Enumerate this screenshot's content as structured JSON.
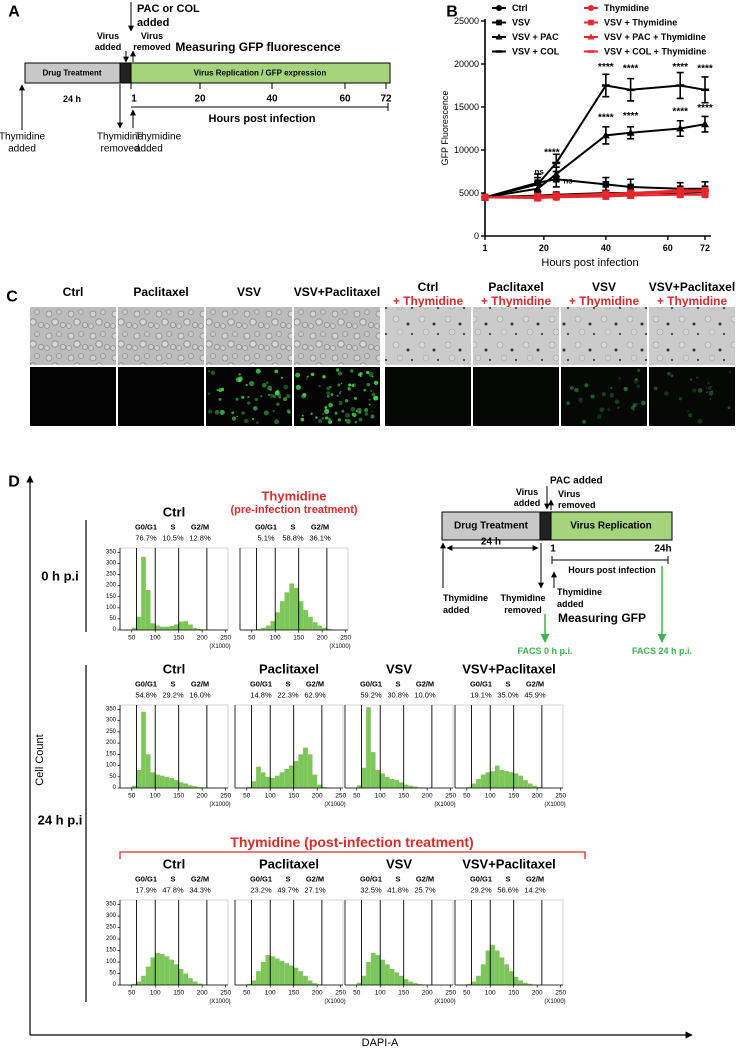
{
  "panel_labels": [
    "A",
    "B",
    "C",
    "D"
  ],
  "panel_a": {
    "pac_col_added": [
      "PAC or COL",
      "added"
    ],
    "virus_added": [
      "Virus",
      "added"
    ],
    "virus_removed": [
      "Virus",
      "removed"
    ],
    "measuring": "Measuring GFP fluorescence",
    "drug_treatment": "Drug Treatment",
    "virus_replication": "Virus Replication / GFP expression",
    "duration": "24 h",
    "hour_ticks": [
      "1",
      "20",
      "40",
      "60",
      "72"
    ],
    "axis_label": "Hours post infection",
    "thymidine_added": [
      "Thymidine",
      "added"
    ],
    "thymidine_removed": [
      "Thymidine",
      "removed"
    ],
    "thymidine_added_2": [
      "Thymidine",
      "added"
    ]
  },
  "chart_data": [
    {
      "type": "line",
      "x_label": "Hours post infection",
      "y_label": "GFP Fluorescence",
      "x": [
        1,
        18,
        24,
        40,
        48,
        64,
        72
      ],
      "xlim": [
        1,
        72
      ],
      "xticks": [
        1,
        20,
        40,
        60,
        72
      ],
      "ylim": [
        0,
        25000
      ],
      "yticks": [
        0,
        5000,
        10000,
        15000,
        20000,
        25000
      ],
      "series": [
        {
          "name": "Ctrl",
          "color": "#000000",
          "marker": "circle",
          "values": [
            4500,
            4700,
            4800,
            5000,
            5000,
            5000,
            5100
          ],
          "errors": [
            200,
            300,
            300,
            300,
            300,
            300,
            300
          ]
        },
        {
          "name": "VSV",
          "color": "#000000",
          "marker": "square",
          "values": [
            4500,
            6200,
            6600,
            6000,
            5700,
            5500,
            5500
          ],
          "errors": [
            300,
            1000,
            900,
            800,
            900,
            700,
            800
          ]
        },
        {
          "name": "VSV + PAC",
          "color": "#000000",
          "marker": "triangle",
          "values": [
            4500,
            5500,
            7200,
            11700,
            12000,
            12500,
            13000
          ],
          "errors": [
            300,
            800,
            800,
            1000,
            700,
            900,
            900
          ]
        },
        {
          "name": "VSV + COL",
          "color": "#000000",
          "marker": "dash",
          "values": [
            4500,
            6000,
            8500,
            17500,
            17000,
            17500,
            17000
          ],
          "errors": [
            300,
            800,
            1000,
            1300,
            1300,
            1500,
            1500
          ]
        },
        {
          "name": "Thymidine",
          "color": "#e8262b",
          "marker": "circle",
          "values": [
            4500,
            4400,
            4500,
            4600,
            4700,
            4800,
            4800
          ],
          "errors": [
            200,
            300,
            300,
            300,
            300,
            300,
            300
          ]
        },
        {
          "name": "VSV + Thymidine",
          "color": "#e8262b",
          "marker": "square",
          "values": [
            4500,
            4500,
            4600,
            4800,
            4900,
            5100,
            5200
          ],
          "errors": [
            200,
            300,
            300,
            300,
            300,
            300,
            300
          ]
        },
        {
          "name": "VSV + PAC + Thymidine",
          "color": "#e8262b",
          "marker": "triangle",
          "values": [
            4500,
            4500,
            4700,
            4900,
            5000,
            5200,
            5300
          ],
          "errors": [
            200,
            300,
            300,
            300,
            300,
            300,
            300
          ]
        },
        {
          "name": "VSV + COL + Thymidine",
          "color": "#e8262b",
          "marker": "dash",
          "values": [
            4500,
            4600,
            4700,
            4900,
            5000,
            5300,
            5300
          ],
          "errors": [
            200,
            300,
            300,
            300,
            300,
            300,
            300
          ]
        }
      ],
      "annotations": [
        {
          "text": "ns",
          "x": 18.5,
          "y": 7440
        },
        {
          "text": "****",
          "x": 22.6,
          "y": 9650
        },
        {
          "text": "ns",
          "x": 27.8,
          "y": 6400
        },
        {
          "text": "****",
          "x": 40,
          "y": 19600
        },
        {
          "text": "****",
          "x": 48,
          "y": 19400
        },
        {
          "text": "****",
          "x": 64,
          "y": 19600
        },
        {
          "text": "****",
          "x": 72,
          "y": 19400
        },
        {
          "text": "****",
          "x": 40,
          "y": 13700
        },
        {
          "text": "****",
          "x": 48,
          "y": 13900
        },
        {
          "text": "****",
          "x": 64,
          "y": 14400
        },
        {
          "text": "****",
          "x": 72,
          "y": 14800
        }
      ]
    },
    {
      "type": "histogram",
      "title": "Ctrl",
      "phases": [
        "G0/G1",
        "S",
        "G2/M"
      ],
      "percentages": [
        "76.7%",
        "10.5%",
        "12.8%"
      ],
      "bins": [
        30,
        40,
        50,
        60,
        70,
        80,
        90,
        100,
        110,
        120,
        130,
        140,
        150,
        160,
        170,
        180,
        190,
        200,
        210,
        220,
        230,
        240,
        250
      ],
      "counts": [
        0,
        2,
        10,
        60,
        330,
        180,
        30,
        20,
        15,
        15,
        18,
        25,
        38,
        40,
        25,
        10,
        4,
        2,
        1,
        0,
        0,
        0
      ],
      "gates": [
        60,
        100,
        150,
        210
      ],
      "xlim": [
        25,
        255
      ],
      "ylim": [
        0,
        370
      ],
      "xticks": [
        50,
        100,
        150,
        200,
        250
      ],
      "yticks": [
        0,
        50,
        100,
        150,
        200,
        250,
        300,
        350
      ],
      "x_unit": "(X1000)",
      "color": "#7dc65a"
    },
    {
      "type": "histogram",
      "title": "Thymidine",
      "subtitle": "(pre-infection treatment)",
      "title_color": "#e02a2a",
      "phases": [
        "G0/G1",
        "S",
        "G2/M"
      ],
      "percentages": [
        "5.1%",
        "58.8%",
        "36.1%"
      ],
      "bins": [
        30,
        40,
        50,
        60,
        70,
        80,
        90,
        100,
        110,
        120,
        130,
        140,
        150,
        160,
        170,
        180,
        190,
        200,
        210,
        220,
        230,
        240,
        250
      ],
      "counts": [
        0,
        0,
        2,
        5,
        10,
        20,
        40,
        80,
        130,
        170,
        210,
        190,
        130,
        90,
        60,
        35,
        20,
        10,
        5,
        2,
        0,
        0
      ],
      "gates": [
        60,
        100,
        150,
        210
      ],
      "xlim": [
        25,
        255
      ],
      "ylim": [
        0,
        370
      ],
      "xticks": [
        50,
        100,
        150,
        200,
        250
      ],
      "x_unit": "(X1000)",
      "color": "#7dc65a"
    },
    {
      "type": "histogram",
      "title": "Ctrl",
      "phases": [
        "G0/G1",
        "S",
        "G2/M"
      ],
      "percentages": [
        "54.8%",
        "29.2%",
        "16.0%"
      ],
      "bins": [
        30,
        40,
        50,
        60,
        70,
        80,
        90,
        100,
        110,
        120,
        130,
        140,
        150,
        160,
        170,
        180,
        190,
        200,
        210,
        220,
        230,
        240,
        250
      ],
      "counts": [
        0,
        2,
        10,
        80,
        340,
        150,
        70,
        60,
        55,
        50,
        45,
        35,
        25,
        20,
        12,
        8,
        4,
        2,
        1,
        0,
        0,
        0
      ],
      "gates": [
        60,
        100,
        150,
        210
      ],
      "xlim": [
        25,
        255
      ],
      "ylim": [
        0,
        370
      ],
      "xticks": [
        50,
        100,
        150,
        200,
        250
      ],
      "yticks": [
        0,
        50,
        100,
        150,
        200,
        250,
        300,
        350
      ],
      "x_unit": "(X1000)",
      "color": "#7dc65a"
    },
    {
      "type": "histogram",
      "title": "Paclitaxel",
      "phases": [
        "G0/G1",
        "S",
        "G2/M"
      ],
      "percentages": [
        "14.8%",
        "22.3%",
        "62.9%"
      ],
      "bins": [
        30,
        40,
        50,
        60,
        70,
        80,
        90,
        100,
        110,
        120,
        130,
        140,
        150,
        160,
        170,
        180,
        190,
        200,
        210,
        220,
        230,
        240,
        250
      ],
      "counts": [
        0,
        1,
        5,
        30,
        95,
        70,
        50,
        45,
        55,
        70,
        85,
        100,
        120,
        150,
        180,
        150,
        60,
        15,
        5,
        2,
        0,
        0
      ],
      "gates": [
        60,
        100,
        150,
        210
      ],
      "xlim": [
        25,
        255
      ],
      "ylim": [
        0,
        370
      ],
      "xticks": [
        50,
        100,
        150,
        200,
        250
      ],
      "x_unit": "(X1000)",
      "color": "#7dc65a"
    },
    {
      "type": "histogram",
      "title": "VSV",
      "phases": [
        "G0/G1",
        "S",
        "G2/M"
      ],
      "percentages": [
        "59.2%",
        "30.8%",
        "10.0%"
      ],
      "bins": [
        30,
        40,
        50,
        60,
        70,
        80,
        90,
        100,
        110,
        120,
        130,
        140,
        150,
        160,
        170,
        180,
        190,
        200,
        210,
        220,
        230,
        240,
        250
      ],
      "counts": [
        0,
        2,
        12,
        90,
        360,
        160,
        80,
        65,
        50,
        40,
        35,
        25,
        15,
        10,
        6,
        3,
        2,
        1,
        0,
        0,
        0,
        0
      ],
      "gates": [
        60,
        100,
        150,
        210
      ],
      "xlim": [
        25,
        255
      ],
      "ylim": [
        0,
        370
      ],
      "xticks": [
        50,
        100,
        150,
        200,
        250
      ],
      "x_unit": "(X1000)",
      "color": "#7dc65a"
    },
    {
      "type": "histogram",
      "title": "VSV+Paclitaxel",
      "phases": [
        "G0/G1",
        "S",
        "G2/M"
      ],
      "percentages": [
        "19.1%",
        "35.0%",
        "45.9%"
      ],
      "bins": [
        30,
        40,
        50,
        60,
        70,
        80,
        90,
        100,
        110,
        120,
        130,
        140,
        150,
        160,
        170,
        180,
        190,
        200,
        210,
        220,
        230,
        240,
        250
      ],
      "counts": [
        0,
        1,
        5,
        20,
        40,
        60,
        70,
        75,
        100,
        80,
        75,
        70,
        65,
        55,
        35,
        20,
        10,
        5,
        2,
        1,
        0,
        0
      ],
      "gates": [
        60,
        100,
        150,
        210
      ],
      "xlim": [
        25,
        255
      ],
      "ylim": [
        0,
        370
      ],
      "xticks": [
        50,
        100,
        150,
        200,
        250
      ],
      "x_unit": "(X1000)",
      "color": "#7dc65a"
    },
    {
      "type": "histogram",
      "title": "Ctrl",
      "phases": [
        "G0/G1",
        "S",
        "G2/M"
      ],
      "percentages": [
        "17.9%",
        "47.8%",
        "34.3%"
      ],
      "bins": [
        30,
        40,
        50,
        60,
        70,
        80,
        90,
        100,
        110,
        120,
        130,
        140,
        150,
        160,
        170,
        180,
        190,
        200,
        210,
        220,
        230,
        240,
        250
      ],
      "counts": [
        0,
        1,
        5,
        15,
        40,
        80,
        120,
        140,
        135,
        125,
        110,
        90,
        70,
        50,
        30,
        15,
        6,
        2,
        1,
        0,
        0,
        0
      ],
      "gates": [
        60,
        100,
        150,
        210
      ],
      "xlim": [
        25,
        255
      ],
      "ylim": [
        0,
        370
      ],
      "xticks": [
        50,
        100,
        150,
        200,
        250
      ],
      "yticks": [
        0,
        50,
        100,
        150,
        200,
        250,
        300,
        350
      ],
      "x_unit": "(X1000)",
      "color": "#7dc65a"
    },
    {
      "type": "histogram",
      "title": "Paclitaxel",
      "phases": [
        "G0/G1",
        "S",
        "G2/M"
      ],
      "percentages": [
        "23.2%",
        "49.7%",
        "27.1%"
      ],
      "bins": [
        30,
        40,
        50,
        60,
        70,
        80,
        90,
        100,
        110,
        120,
        130,
        140,
        150,
        160,
        170,
        180,
        190,
        200,
        210,
        220,
        230,
        240,
        250
      ],
      "counts": [
        0,
        1,
        5,
        20,
        60,
        100,
        130,
        125,
        115,
        105,
        95,
        85,
        75,
        60,
        40,
        20,
        8,
        3,
        1,
        0,
        0,
        0
      ],
      "gates": [
        60,
        100,
        150,
        210
      ],
      "xlim": [
        25,
        255
      ],
      "ylim": [
        0,
        370
      ],
      "xticks": [
        50,
        100,
        150,
        200,
        250
      ],
      "x_unit": "(X1000)",
      "color": "#7dc65a"
    },
    {
      "type": "histogram",
      "title": "VSV",
      "phases": [
        "G0/G1",
        "S",
        "G2/M"
      ],
      "percentages": [
        "32.5%",
        "41.8%",
        "25.7%"
      ],
      "bins": [
        30,
        40,
        50,
        60,
        70,
        80,
        90,
        100,
        110,
        120,
        130,
        140,
        150,
        160,
        170,
        180,
        190,
        200,
        210,
        220,
        230,
        240,
        250
      ],
      "counts": [
        0,
        1,
        10,
        40,
        100,
        140,
        130,
        110,
        90,
        70,
        55,
        40,
        25,
        15,
        8,
        4,
        2,
        1,
        0,
        0,
        0,
        0
      ],
      "gates": [
        60,
        100,
        150,
        210
      ],
      "xlim": [
        25,
        255
      ],
      "ylim": [
        0,
        370
      ],
      "xticks": [
        50,
        100,
        150,
        200,
        250
      ],
      "x_unit": "(X1000)",
      "color": "#7dc65a"
    },
    {
      "type": "histogram",
      "title": "VSV+Paclitaxel",
      "phases": [
        "G0/G1",
        "S",
        "G2/M"
      ],
      "percentages": [
        "29.2%",
        "56.6%",
        "14.2%"
      ],
      "bins": [
        30,
        40,
        50,
        60,
        70,
        80,
        90,
        100,
        110,
        120,
        130,
        140,
        150,
        160,
        170,
        180,
        190,
        200,
        210,
        220,
        230,
        240,
        250
      ],
      "counts": [
        0,
        1,
        5,
        15,
        40,
        90,
        150,
        175,
        150,
        120,
        90,
        60,
        35,
        20,
        10,
        5,
        2,
        1,
        0,
        0,
        0,
        0
      ],
      "gates": [
        60,
        100,
        150,
        210
      ],
      "xlim": [
        25,
        255
      ],
      "ylim": [
        0,
        370
      ],
      "xticks": [
        50,
        100,
        150,
        200,
        250
      ],
      "x_unit": "(X1000)",
      "color": "#7dc65a"
    }
  ],
  "panel_c": {
    "columns": [
      {
        "name": "Ctrl"
      },
      {
        "name": "Paclitaxel"
      },
      {
        "name": "VSV"
      },
      {
        "name": "VSV+Paclitaxel"
      },
      {
        "name": "Ctrl",
        "treatment": "+ Thymidine"
      },
      {
        "name": "Paclitaxel",
        "treatment": "+ Thymidine"
      },
      {
        "name": "VSV",
        "treatment": "+ Thymidine"
      },
      {
        "name": "VSV+Paclitaxel",
        "treatment": "+ Thymidine"
      }
    ]
  },
  "panel_d": {
    "y_axis": "Cell Count",
    "x_axis": "DAPI-A",
    "row_labels": [
      "0 h p.i",
      "24 h p.i"
    ],
    "post_treatment": "Thymidine (post-infection treatment)",
    "timeline": {
      "pac_added": "PAC added",
      "virus_added": [
        "Virus",
        "added"
      ],
      "virus_removed": [
        "Virus",
        "removed"
      ],
      "drug_treatment": "Drug Treatment",
      "virus_replication": "Virus Replication",
      "duration": "24 h",
      "start": "1",
      "end": "24h",
      "axis_label": "Hours post infection",
      "thymidine_added": [
        "Thymidine",
        "added"
      ],
      "thymidine_removed": [
        "Thymidine",
        "removed"
      ],
      "thymidine_added_2": [
        "Thymidine",
        "added"
      ],
      "measuring": "Measuring GFP",
      "facs_0": "FACS 0 h p.i.",
      "facs_24": "FACS 24 h p.i."
    }
  }
}
